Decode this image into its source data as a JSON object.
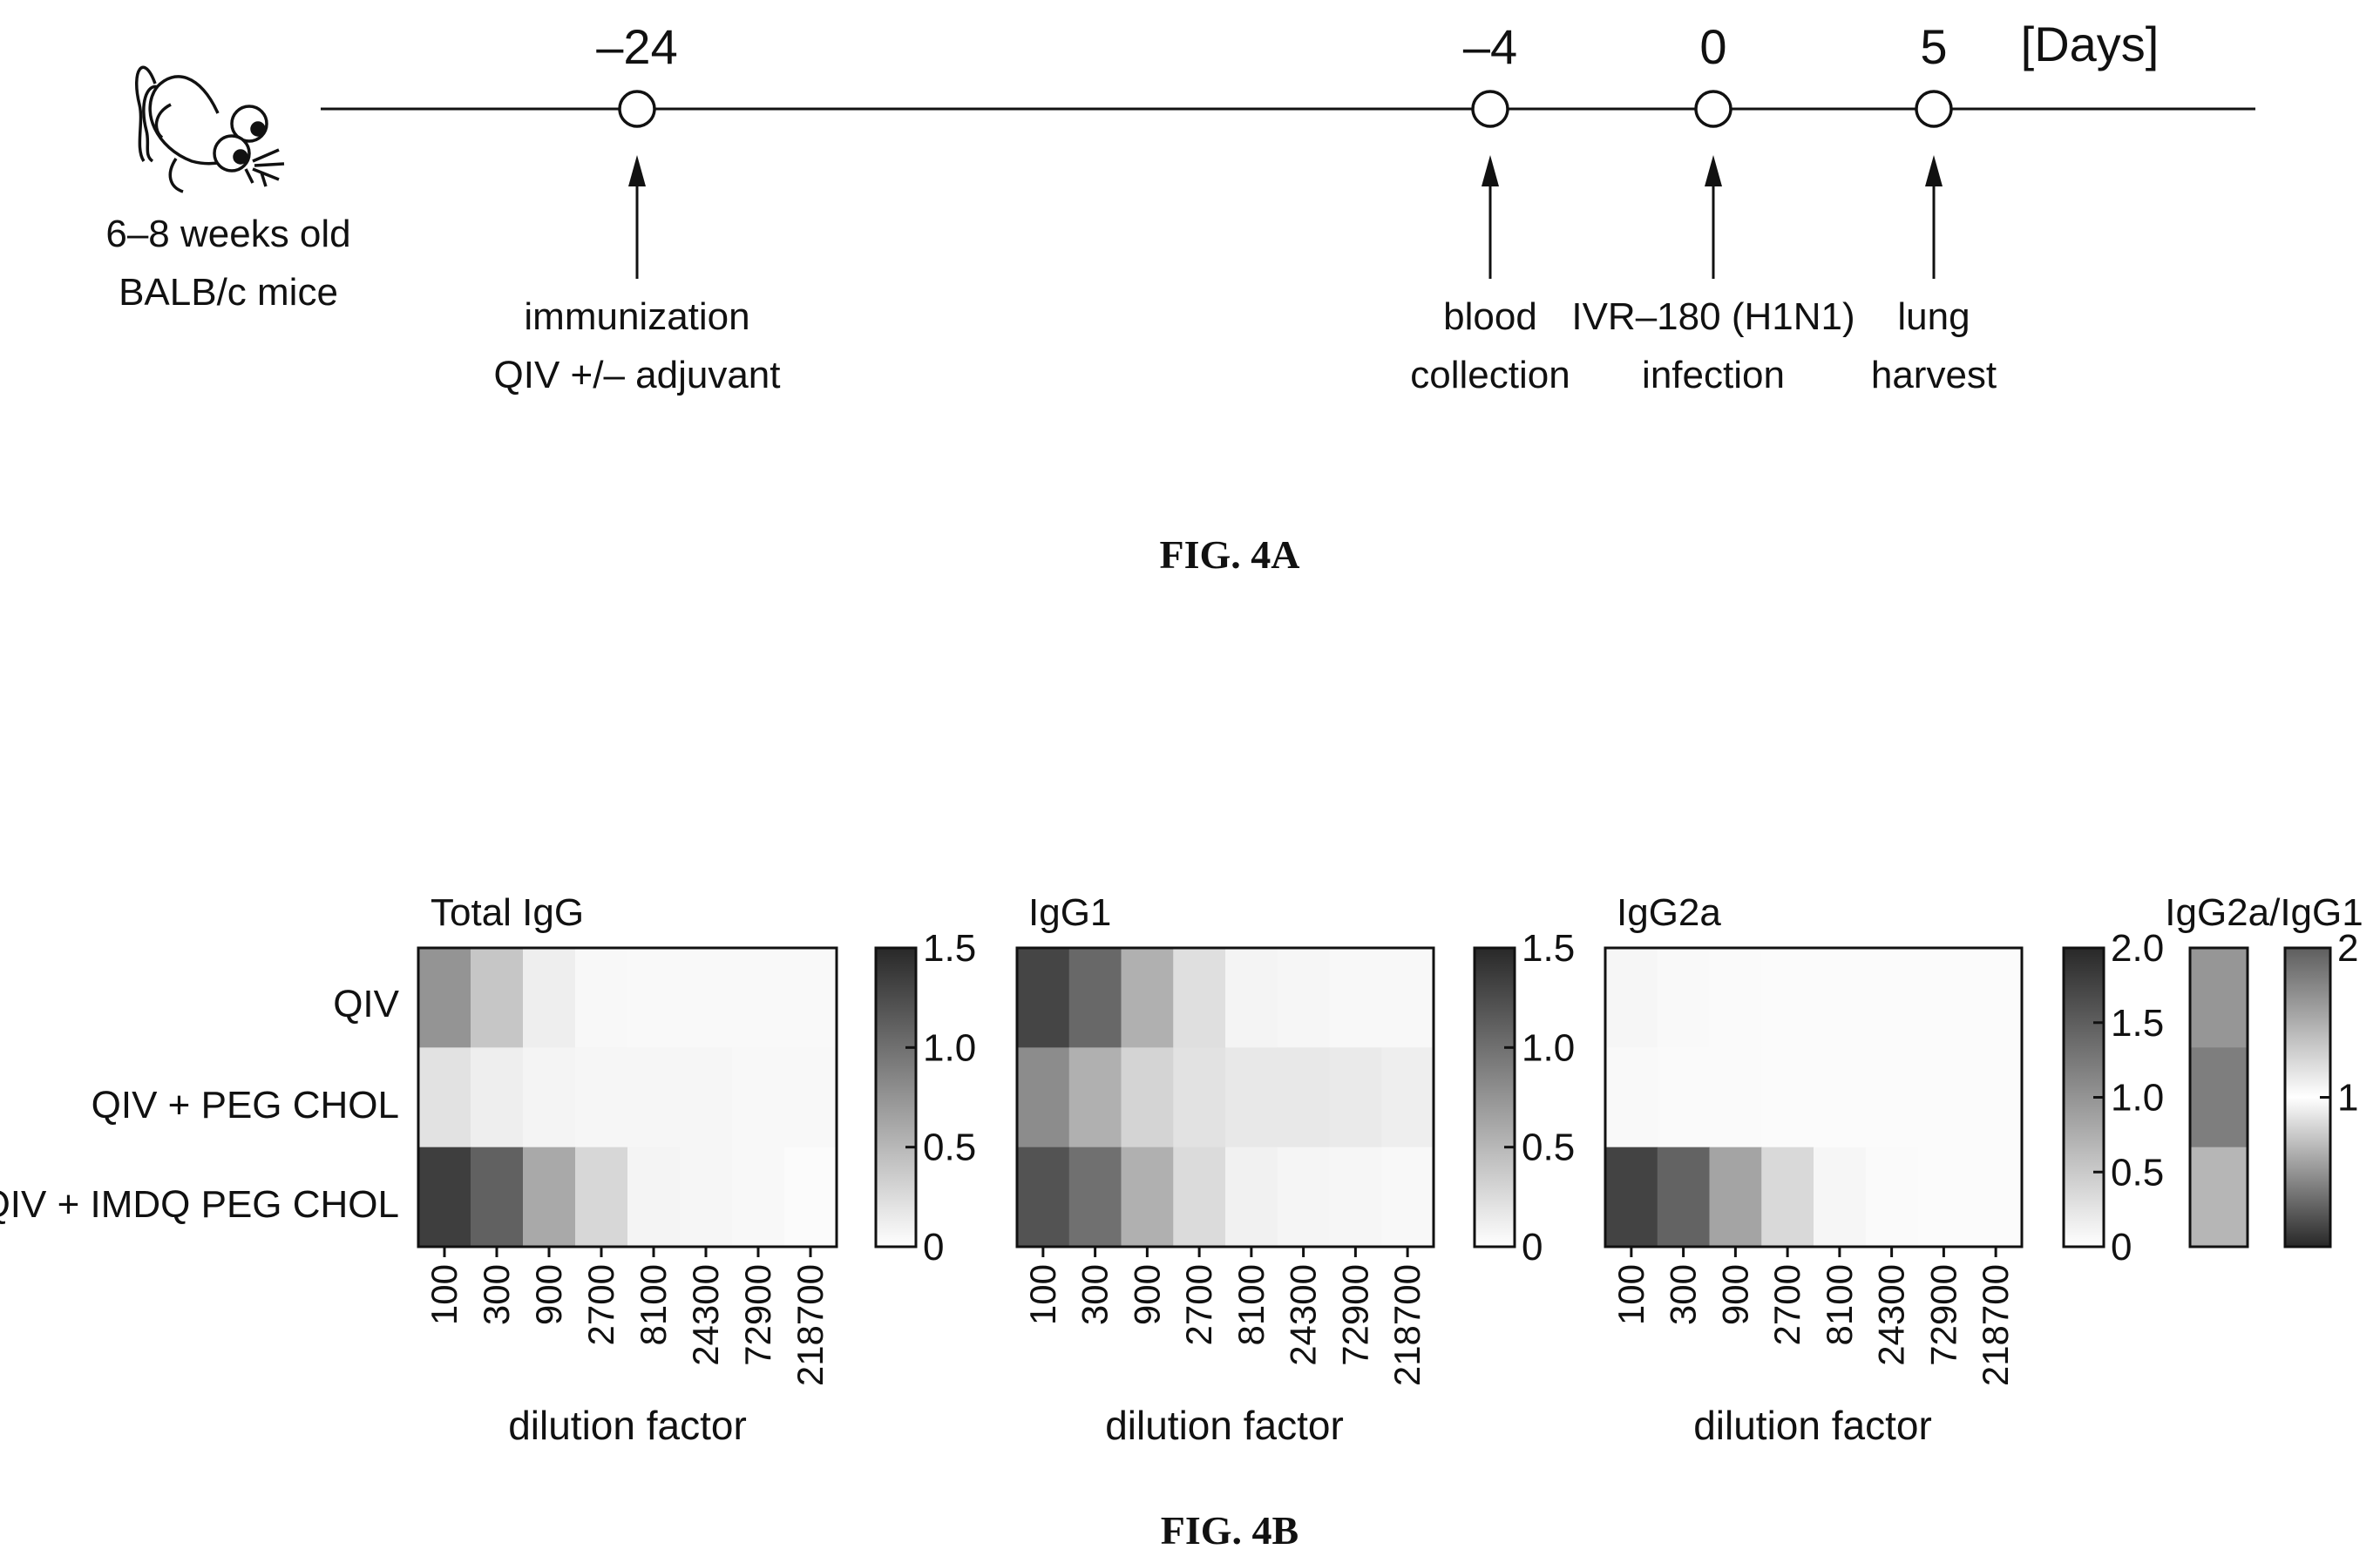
{
  "timeline": {
    "mouse_label_line1": "6–8 weeks old",
    "mouse_label_line2": "BALB/c mice",
    "unit": "[Days]",
    "events": [
      {
        "day": "–24",
        "label_line1": "immunization",
        "label_line2": "QIV +/– adjuvant"
      },
      {
        "day": "–4",
        "label_line1": "blood",
        "label_line2": "collection"
      },
      {
        "day": "0",
        "label_line1": "IVR–180 (H1N1)",
        "label_line2": "infection"
      },
      {
        "day": "5",
        "label_line1": "lung",
        "label_line2": "harvest"
      }
    ]
  },
  "figure_a_caption": "FIG. 4A",
  "figure_b_caption": "FIG. 4B",
  "chart_data": [
    {
      "type": "heatmap",
      "title": "Total IgG",
      "xlabel": "dilution factor",
      "rows": [
        "QIV",
        "QIV + PEG CHOL",
        "QIV + IMDQ PEG CHOL"
      ],
      "columns": [
        "100",
        "300",
        "900",
        "2700",
        "8100",
        "24300",
        "72900",
        "218700"
      ],
      "values": [
        [
          0.75,
          0.4,
          0.12,
          0.05,
          0.04,
          0.04,
          0.04,
          0.04
        ],
        [
          0.2,
          0.12,
          0.08,
          0.06,
          0.06,
          0.06,
          0.05,
          0.05
        ],
        [
          1.35,
          1.1,
          0.6,
          0.28,
          0.08,
          0.06,
          0.05,
          0.03
        ]
      ],
      "scale": {
        "min": 0,
        "max": 1.5,
        "ticks": [
          "1.5",
          "1.0",
          "0.5",
          "0"
        ],
        "tick_values": [
          1.5,
          1.0,
          0.5,
          0
        ]
      }
    },
    {
      "type": "heatmap",
      "title": "IgG1",
      "xlabel": "dilution factor",
      "rows": [
        "QIV",
        "QIV + PEG CHOL",
        "QIV + IMDQ PEG CHOL"
      ],
      "columns": [
        "100",
        "300",
        "900",
        "2700",
        "8100",
        "24300",
        "72900",
        "218700"
      ],
      "values": [
        [
          1.3,
          1.05,
          0.55,
          0.22,
          0.08,
          0.06,
          0.05,
          0.05
        ],
        [
          0.8,
          0.55,
          0.3,
          0.2,
          0.16,
          0.16,
          0.15,
          0.12
        ],
        [
          1.2,
          1.0,
          0.55,
          0.25,
          0.1,
          0.07,
          0.06,
          0.05
        ]
      ],
      "scale": {
        "min": 0,
        "max": 1.5,
        "ticks": [
          "1.5",
          "1.0",
          "0.5",
          "0"
        ],
        "tick_values": [
          1.5,
          1.0,
          0.5,
          0
        ]
      }
    },
    {
      "type": "heatmap",
      "title": "IgG2a",
      "xlabel": "dilution factor",
      "rows": [
        "QIV",
        "QIV + PEG CHOL",
        "QIV + IMDQ PEG CHOL"
      ],
      "columns": [
        "100",
        "300",
        "900",
        "2700",
        "8100",
        "24300",
        "72900",
        "218700"
      ],
      "values": [
        [
          0.08,
          0.06,
          0.05,
          0.04,
          0.04,
          0.04,
          0.04,
          0.04
        ],
        [
          0.06,
          0.05,
          0.05,
          0.04,
          0.04,
          0.04,
          0.04,
          0.04
        ],
        [
          1.75,
          1.45,
          0.85,
          0.35,
          0.08,
          0.05,
          0.04,
          0.04
        ]
      ],
      "scale": {
        "min": 0,
        "max": 2.0,
        "ticks": [
          "2.0",
          "1.5",
          "1.0",
          "0.5",
          "0"
        ],
        "tick_values": [
          2.0,
          1.5,
          1.0,
          0.5,
          0
        ]
      }
    },
    {
      "type": "heatmap",
      "title": "IgG2a/IgG1",
      "rows": [
        "QIV",
        "QIV + PEG CHOL",
        "QIV + IMDQ PEG CHOL"
      ],
      "columns": [
        ""
      ],
      "values": [
        [
          1.65
        ],
        [
          1.8
        ],
        [
          1.45
        ]
      ],
      "scale": {
        "min": 0,
        "max": 2,
        "center": 1,
        "ticks": [
          "2",
          "1"
        ],
        "tick_values": [
          2,
          1
        ],
        "diverging": true
      }
    }
  ]
}
